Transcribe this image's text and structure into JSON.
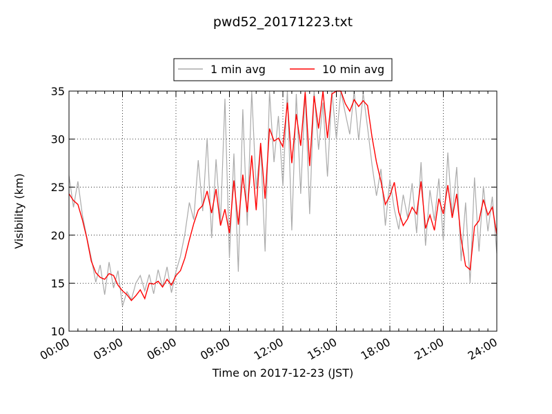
{
  "chart_data": {
    "type": "line",
    "title": "pwd52_20171223.txt",
    "xlabel": "Time on 2017-12-23 (JST)",
    "ylabel": "Visibility (km)",
    "x_domain": [
      "00:00",
      "24:00"
    ],
    "xlim_hours": [
      0,
      24
    ],
    "ylim": [
      10,
      35
    ],
    "x_ticks": [
      "00:00",
      "03:00",
      "06:00",
      "09:00",
      "12:00",
      "15:00",
      "18:00",
      "21:00",
      "24:00"
    ],
    "y_ticks": [
      "10",
      "15",
      "20",
      "25",
      "30",
      "35"
    ],
    "grid": true,
    "grid_style": "dotted",
    "legend_position": "top-center, outside axes",
    "x_unit": "hour (JST)",
    "series": [
      {
        "name": "1 min avg",
        "color": "#aaaaaa",
        "x": [
          0.0,
          0.25,
          0.5,
          0.75,
          1.0,
          1.25,
          1.5,
          1.75,
          2.0,
          2.25,
          2.5,
          2.75,
          3.0,
          3.25,
          3.5,
          3.75,
          4.0,
          4.25,
          4.5,
          4.75,
          5.0,
          5.25,
          5.5,
          5.75,
          6.0,
          6.25,
          6.5,
          6.75,
          7.0,
          7.25,
          7.5,
          7.75,
          8.0,
          8.25,
          8.5,
          8.75,
          9.0,
          9.25,
          9.5,
          9.75,
          10.0,
          10.25,
          10.5,
          10.75,
          11.0,
          11.25,
          11.5,
          11.75,
          12.0,
          12.25,
          12.5,
          12.75,
          13.0,
          13.25,
          13.5,
          13.75,
          14.0,
          14.25,
          14.5,
          14.75,
          15.0,
          15.25,
          15.5,
          15.75,
          16.0,
          16.25,
          16.5,
          16.75,
          17.0,
          17.25,
          17.5,
          17.75,
          18.0,
          18.25,
          18.5,
          18.75,
          19.0,
          19.25,
          19.5,
          19.75,
          20.0,
          20.25,
          20.5,
          20.75,
          21.0,
          21.25,
          21.5,
          21.75,
          22.0,
          22.25,
          22.5,
          22.75,
          23.0,
          23.25,
          23.5,
          23.75,
          24.0
        ],
        "values": [
          26.2,
          22.9,
          25.6,
          22.1,
          19.8,
          17.6,
          15.1,
          16.9,
          13.8,
          17.2,
          14.5,
          16.3,
          12.6,
          14.1,
          13.3,
          15.0,
          15.8,
          14.2,
          15.9,
          13.9,
          16.4,
          14.6,
          16.7,
          14.0,
          16.2,
          17.8,
          20.1,
          23.4,
          21.6,
          27.8,
          22.5,
          30.1,
          19.7,
          27.9,
          21.3,
          34.2,
          17.6,
          28.5,
          16.2,
          33.1,
          21.0,
          35.0,
          24.8,
          29.3,
          18.3,
          35.0,
          27.6,
          32.4,
          25.1,
          35.0,
          20.5,
          34.7,
          24.3,
          35.0,
          22.2,
          35.0,
          28.9,
          33.8,
          26.1,
          35.0,
          30.0,
          35.0,
          32.7,
          30.5,
          35.0,
          29.9,
          34.8,
          31.2,
          27.3,
          24.1,
          26.9,
          21.0,
          25.8,
          22.7,
          20.6,
          24.2,
          21.8,
          25.4,
          20.2,
          27.6,
          18.9,
          24.7,
          21.5,
          25.9,
          19.4,
          28.6,
          22.0,
          27.1,
          17.3,
          23.4,
          15.0,
          26.0,
          18.3,
          25.1,
          20.4,
          24.0,
          18.1
        ]
      },
      {
        "name": "10 min avg",
        "color": "#ff0000",
        "x": [
          0.0,
          0.25,
          0.5,
          0.75,
          1.0,
          1.25,
          1.5,
          1.75,
          2.0,
          2.25,
          2.5,
          2.75,
          3.0,
          3.25,
          3.5,
          3.75,
          4.0,
          4.25,
          4.5,
          4.75,
          5.0,
          5.25,
          5.5,
          5.75,
          6.0,
          6.25,
          6.5,
          6.75,
          7.0,
          7.25,
          7.5,
          7.75,
          8.0,
          8.25,
          8.5,
          8.75,
          9.0,
          9.25,
          9.5,
          9.75,
          10.0,
          10.25,
          10.5,
          10.75,
          11.0,
          11.25,
          11.5,
          11.75,
          12.0,
          12.25,
          12.5,
          12.75,
          13.0,
          13.25,
          13.5,
          13.75,
          14.0,
          14.25,
          14.5,
          14.75,
          15.0,
          15.25,
          15.5,
          15.75,
          16.0,
          16.25,
          16.5,
          16.75,
          17.0,
          17.25,
          17.5,
          17.75,
          18.0,
          18.25,
          18.5,
          18.75,
          19.0,
          19.25,
          19.5,
          19.75,
          20.0,
          20.25,
          20.5,
          20.75,
          21.0,
          21.25,
          21.5,
          21.75,
          22.0,
          22.25,
          22.5,
          22.75,
          23.0,
          23.25,
          23.5,
          23.75,
          24.0
        ],
        "values": [
          24.3,
          23.6,
          23.2,
          21.6,
          19.7,
          17.3,
          16.1,
          15.6,
          15.4,
          16.0,
          15.8,
          14.8,
          14.2,
          13.8,
          13.2,
          13.7,
          14.3,
          13.4,
          15.0,
          14.9,
          15.2,
          14.6,
          15.4,
          14.8,
          15.8,
          16.3,
          17.6,
          19.5,
          21.2,
          22.6,
          23.1,
          24.6,
          22.3,
          24.8,
          21.0,
          22.7,
          20.2,
          25.7,
          21.1,
          26.3,
          22.4,
          28.3,
          22.6,
          29.6,
          23.8,
          31.1,
          29.8,
          30.1,
          29.2,
          33.8,
          27.5,
          32.6,
          29.3,
          34.9,
          27.2,
          34.5,
          31.1,
          35.0,
          30.1,
          34.7,
          35.0,
          35.0,
          33.7,
          32.9,
          34.1,
          33.4,
          34.0,
          33.5,
          30.2,
          27.6,
          25.6,
          23.2,
          24.1,
          25.5,
          22.4,
          21.0,
          21.7,
          22.9,
          22.2,
          25.6,
          20.7,
          22.1,
          20.5,
          23.8,
          22.2,
          25.2,
          21.8,
          24.3,
          19.6,
          16.8,
          16.4,
          20.9,
          21.5,
          23.7,
          22.1,
          22.9,
          20.1
        ]
      }
    ]
  }
}
